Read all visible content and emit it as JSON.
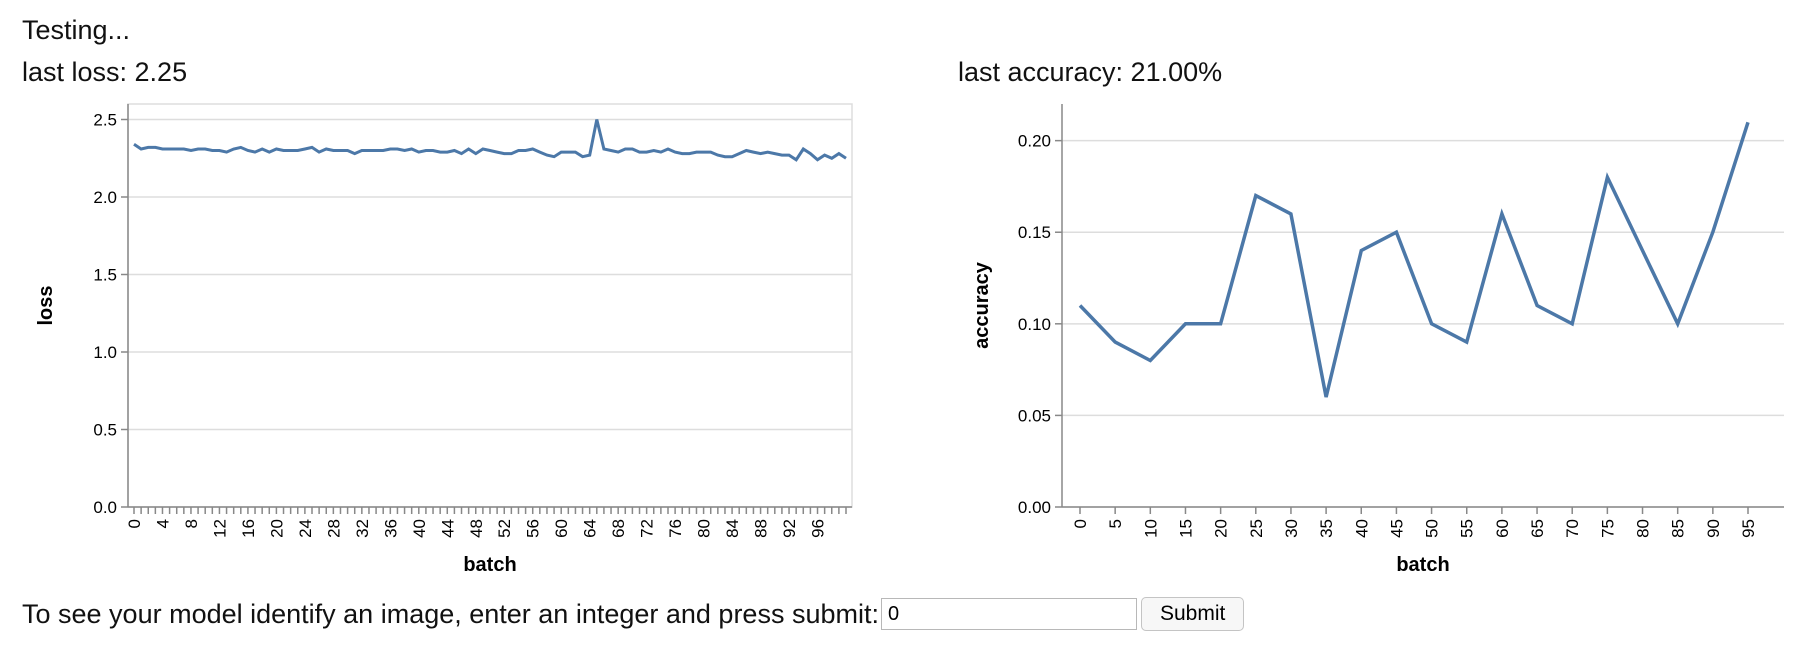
{
  "status_text": "Testing...",
  "loss_label": "last loss: 2.25",
  "accuracy_label": "last accuracy: 21.00%",
  "prompt": {
    "text": "To see your model identify an image, enter an integer and press submit:",
    "input_value": "0",
    "submit_label": "Submit"
  },
  "colors": {
    "line": "#4c78a8",
    "grid": "#dddddd",
    "axis": "#888888"
  },
  "chart_data": [
    {
      "type": "line",
      "xlabel": "batch",
      "ylabel": "loss",
      "ylim": [
        0,
        2.6
      ],
      "yticks": [
        "0.0",
        "0.5",
        "1.0",
        "1.5",
        "2.0",
        "2.5"
      ],
      "ytick_values": [
        0,
        0.5,
        1.0,
        1.5,
        2.0,
        2.5
      ],
      "xlim": [
        0,
        99
      ],
      "xtick_labels": [
        "0",
        "4",
        "8",
        "12",
        "16",
        "20",
        "24",
        "28",
        "32",
        "36",
        "40",
        "44",
        "48",
        "52",
        "56",
        "60",
        "64",
        "68",
        "72",
        "76",
        "80",
        "84",
        "88",
        "92",
        "96"
      ],
      "xtick_values": [
        0,
        4,
        8,
        12,
        16,
        20,
        24,
        28,
        32,
        36,
        40,
        44,
        48,
        52,
        56,
        60,
        64,
        68,
        72,
        76,
        80,
        84,
        88,
        92,
        96
      ],
      "grid": true,
      "series": [
        {
          "values": [
            2.34,
            2.31,
            2.32,
            2.32,
            2.31,
            2.31,
            2.31,
            2.31,
            2.3,
            2.31,
            2.31,
            2.3,
            2.3,
            2.29,
            2.31,
            2.32,
            2.3,
            2.29,
            2.31,
            2.29,
            2.31,
            2.3,
            2.3,
            2.3,
            2.31,
            2.32,
            2.29,
            2.31,
            2.3,
            2.3,
            2.3,
            2.28,
            2.3,
            2.3,
            2.3,
            2.3,
            2.31,
            2.31,
            2.3,
            2.31,
            2.29,
            2.3,
            2.3,
            2.29,
            2.29,
            2.3,
            2.28,
            2.31,
            2.28,
            2.31,
            2.3,
            2.29,
            2.28,
            2.28,
            2.3,
            2.3,
            2.31,
            2.29,
            2.27,
            2.26,
            2.29,
            2.29,
            2.29,
            2.26,
            2.27,
            2.5,
            2.31,
            2.3,
            2.29,
            2.31,
            2.31,
            2.29,
            2.29,
            2.3,
            2.29,
            2.31,
            2.29,
            2.28,
            2.28,
            2.29,
            2.29,
            2.29,
            2.27,
            2.26,
            2.26,
            2.28,
            2.3,
            2.29,
            2.28,
            2.29,
            2.28,
            2.27,
            2.27,
            2.24,
            2.31,
            2.28,
            2.24,
            2.27,
            2.25,
            2.28,
            2.25
          ]
        }
      ]
    },
    {
      "type": "line",
      "xlabel": "batch",
      "ylabel": "accuracy",
      "ylim": [
        0,
        0.22
      ],
      "yticks": [
        "0.00",
        "0.05",
        "0.10",
        "0.15",
        "0.20"
      ],
      "ytick_values": [
        0,
        0.05,
        0.1,
        0.15,
        0.2
      ],
      "x": [
        0,
        5,
        10,
        15,
        20,
        25,
        30,
        35,
        40,
        45,
        50,
        55,
        60,
        65,
        70,
        75,
        80,
        85,
        90,
        95
      ],
      "xtick_labels": [
        "0",
        "5",
        "10",
        "15",
        "20",
        "25",
        "30",
        "35",
        "40",
        "45",
        "50",
        "55",
        "60",
        "65",
        "70",
        "75",
        "80",
        "85",
        "90",
        "95"
      ],
      "grid": true,
      "series": [
        {
          "values": [
            0.11,
            0.09,
            0.08,
            0.1,
            0.1,
            0.17,
            0.16,
            0.06,
            0.14,
            0.15,
            0.1,
            0.09,
            0.16,
            0.11,
            0.1,
            0.18,
            0.14,
            0.1,
            0.15,
            0.21
          ]
        }
      ]
    }
  ]
}
